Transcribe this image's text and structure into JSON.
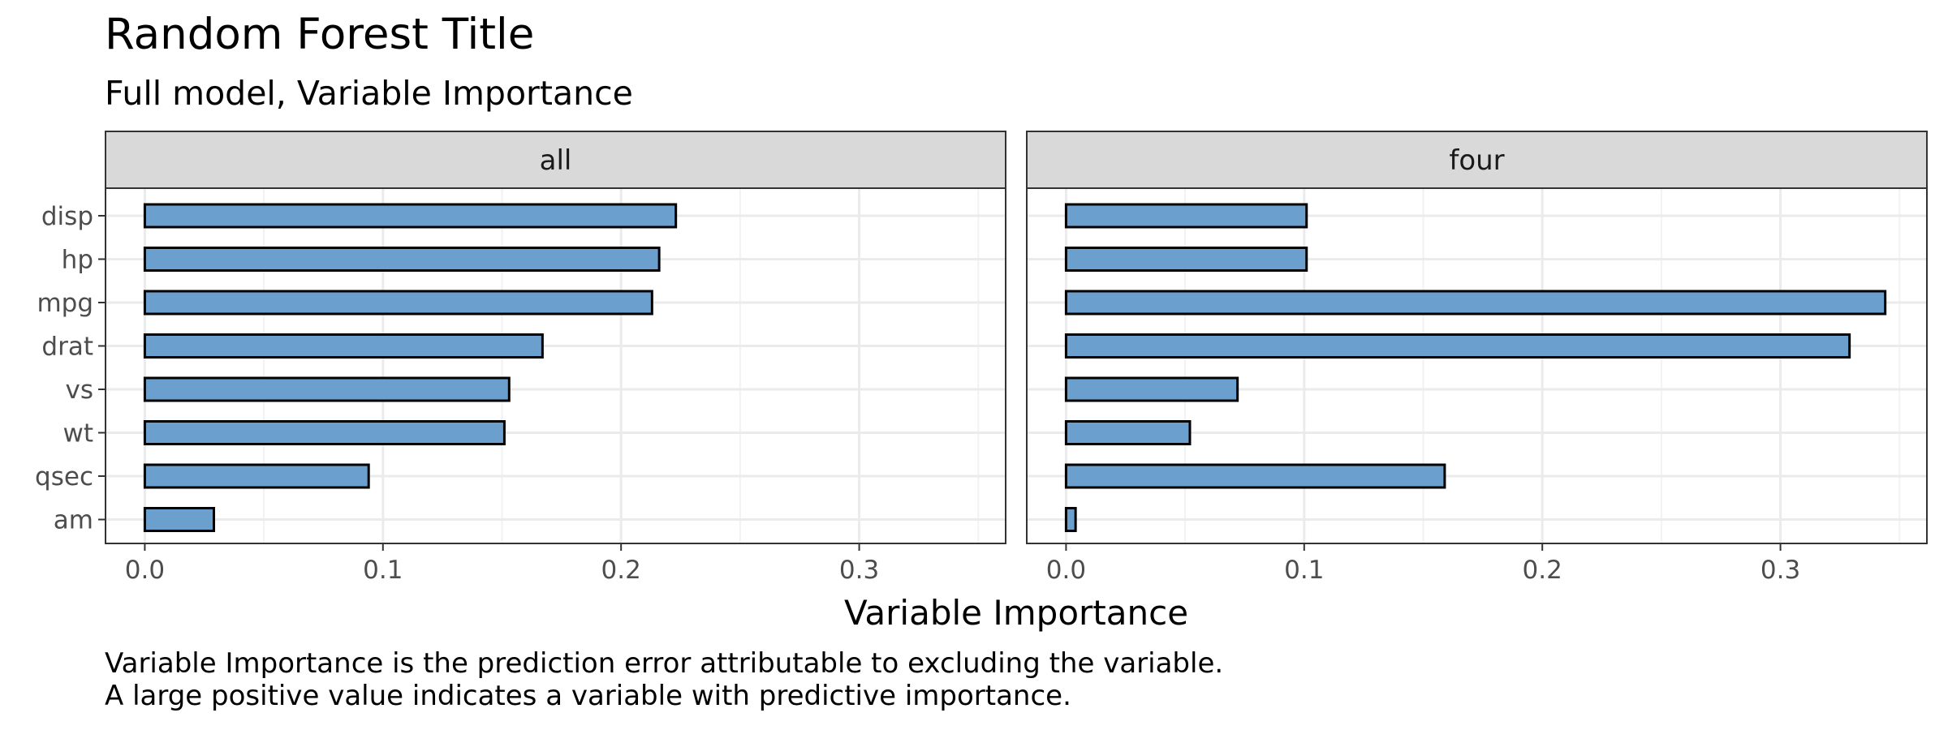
{
  "chart_data": {
    "type": "bar",
    "orientation": "horizontal",
    "title": "Random Forest Title",
    "subtitle": "Full model, Variable Importance",
    "xlabel": "Variable Importance",
    "ylabel": "",
    "caption": [
      "Variable Importance is the prediction error attributable to excluding the variable.",
      "A large positive value indicates a variable with predictive importance."
    ],
    "categories": [
      "disp",
      "hp",
      "mpg",
      "drat",
      "vs",
      "wt",
      "qsec",
      "am"
    ],
    "xlim": [
      -0.0165,
      0.3615
    ],
    "xticks": [
      0.0,
      0.1,
      0.2,
      0.3
    ],
    "xtick_labels": [
      "0.0",
      "0.1",
      "0.2",
      "0.3"
    ],
    "grid": true,
    "bar_fill": "#6a9fce",
    "bar_stroke": "#000000",
    "panels": [
      {
        "strip": "all",
        "values": [
          0.223,
          0.216,
          0.213,
          0.167,
          0.153,
          0.151,
          0.094,
          0.029
        ]
      },
      {
        "strip": "four",
        "values": [
          0.101,
          0.101,
          0.344,
          0.329,
          0.072,
          0.052,
          0.159,
          0.004
        ]
      }
    ]
  }
}
